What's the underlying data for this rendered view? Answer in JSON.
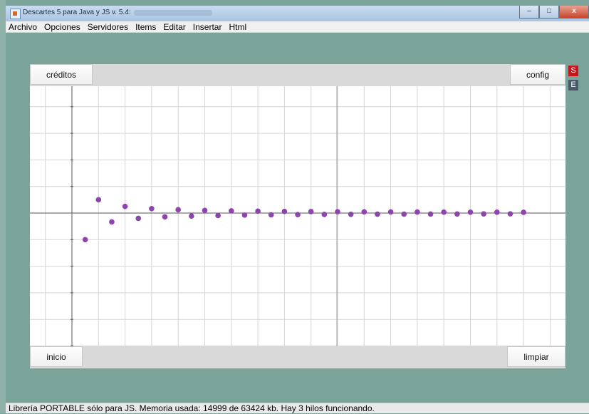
{
  "window": {
    "title": "Descartes 5 para Java y JS v. 5.4:",
    "buttons": {
      "minimize": "–",
      "maximize": "□",
      "close": "x"
    }
  },
  "menu": [
    "Archivo",
    "Opciones",
    "Servidores",
    "Items",
    "Editar",
    "Insertar",
    "Html"
  ],
  "toolbar": {
    "credits_label": "créditos",
    "config_label": "config"
  },
  "side": {
    "s_label": "S",
    "e_label": "E"
  },
  "bottom": {
    "inicio_label": "inicio",
    "limpiar_label": "limpiar"
  },
  "status": {
    "text": "Librería PORTABLE sólo para JS. Memoria usada: 14999 de 63424 kb. Hay 3 hilos funcionando."
  },
  "colors": {
    "point": "#8e44ad",
    "background": "#7aa39a"
  },
  "chart_data": {
    "type": "scatter",
    "grid": true,
    "series": [
      {
        "values": [
          {
            "x": 1,
            "y": -1.0
          },
          {
            "x": 2,
            "y": 0.5
          },
          {
            "x": 3,
            "y": -0.333
          },
          {
            "x": 4,
            "y": 0.25
          },
          {
            "x": 5,
            "y": -0.2
          },
          {
            "x": 6,
            "y": 0.167
          },
          {
            "x": 7,
            "y": -0.143
          },
          {
            "x": 8,
            "y": 0.125
          },
          {
            "x": 9,
            "y": -0.111
          },
          {
            "x": 10,
            "y": 0.1
          },
          {
            "x": 11,
            "y": -0.091
          },
          {
            "x": 12,
            "y": 0.083
          },
          {
            "x": 13,
            "y": -0.077
          },
          {
            "x": 14,
            "y": 0.071
          },
          {
            "x": 15,
            "y": -0.067
          },
          {
            "x": 16,
            "y": 0.063
          },
          {
            "x": 17,
            "y": -0.059
          },
          {
            "x": 18,
            "y": 0.056
          },
          {
            "x": 19,
            "y": -0.053
          },
          {
            "x": 20,
            "y": 0.05
          },
          {
            "x": 21,
            "y": -0.048
          },
          {
            "x": 22,
            "y": 0.045
          },
          {
            "x": 23,
            "y": -0.043
          },
          {
            "x": 24,
            "y": 0.042
          },
          {
            "x": 25,
            "y": -0.04
          },
          {
            "x": 26,
            "y": 0.038
          },
          {
            "x": 27,
            "y": -0.037
          },
          {
            "x": 28,
            "y": 0.036
          },
          {
            "x": 29,
            "y": -0.034
          },
          {
            "x": 30,
            "y": 0.033
          },
          {
            "x": 31,
            "y": -0.032
          },
          {
            "x": 32,
            "y": 0.031
          },
          {
            "x": 33,
            "y": -0.03
          },
          {
            "x": 34,
            "y": 0.029
          }
        ]
      }
    ]
  }
}
